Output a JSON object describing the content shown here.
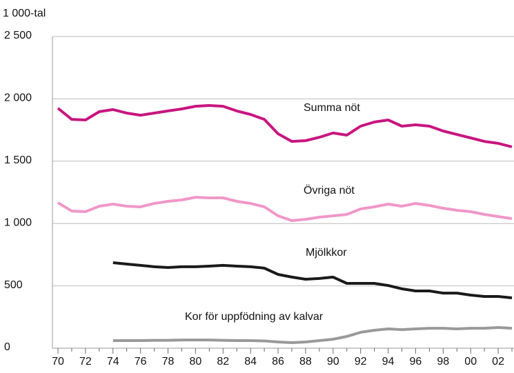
{
  "chart_data": {
    "type": "line",
    "y_unit_label": "1 000-tal",
    "categories": [
      "70",
      null,
      "72",
      null,
      "74",
      null,
      "76",
      null,
      "78",
      null,
      "80",
      null,
      "82",
      null,
      "84",
      null,
      "86",
      null,
      "88",
      null,
      "90",
      null,
      "92",
      null,
      "94",
      null,
      "96",
      null,
      "98",
      null,
      "00",
      null,
      "02",
      null
    ],
    "series": [
      {
        "name": "Summa nöt",
        "color": "#c8157f",
        "values": [
          1925,
          1836,
          1831,
          1897,
          1914,
          1886,
          1869,
          1886,
          1903,
          1919,
          1941,
          1947,
          1941,
          1903,
          1875,
          1836,
          1720,
          1659,
          1665,
          1692,
          1726,
          1709,
          1781,
          1814,
          1831,
          1781,
          1792,
          1781,
          1742,
          1714,
          1687,
          1659,
          1643,
          1615
        ]
      },
      {
        "name": "Övriga nöt",
        "color": "#f097c8",
        "values": [
          1167,
          1100,
          1095,
          1139,
          1156,
          1139,
          1134,
          1161,
          1178,
          1189,
          1211,
          1206,
          1206,
          1178,
          1161,
          1134,
          1062,
          1023,
          1034,
          1051,
          1062,
          1073,
          1117,
          1134,
          1156,
          1139,
          1161,
          1145,
          1123,
          1106,
          1095,
          1073,
          1056,
          1040
        ]
      },
      {
        "name": "Mjölkkor",
        "color": "#1a1a1a",
        "values": [
          null,
          null,
          null,
          null,
          686,
          675,
          664,
          653,
          647,
          653,
          653,
          658,
          664,
          658,
          653,
          642,
          592,
          570,
          553,
          559,
          570,
          520,
          520,
          520,
          503,
          476,
          459,
          459,
          442,
          442,
          426,
          415,
          415,
          404
        ]
      },
      {
        "name": "Kor för uppfödning av kalvar",
        "color": "#999999",
        "values": [
          null,
          null,
          null,
          null,
          61,
          61,
          61,
          63,
          63,
          66,
          66,
          66,
          63,
          61,
          61,
          58,
          50,
          44,
          50,
          61,
          72,
          94,
          127,
          144,
          155,
          149,
          155,
          160,
          160,
          155,
          160,
          160,
          166,
          160
        ]
      }
    ],
    "ylim": [
      0,
      2500
    ],
    "yticks": [
      0,
      500,
      {
        "value": 1000,
        "label": "1 000"
      },
      {
        "value": 1500,
        "label": "1 500"
      },
      {
        "value": 2000,
        "label": "2 000"
      },
      {
        "value": 2500,
        "label": "2 500"
      }
    ],
    "grid": true
  }
}
